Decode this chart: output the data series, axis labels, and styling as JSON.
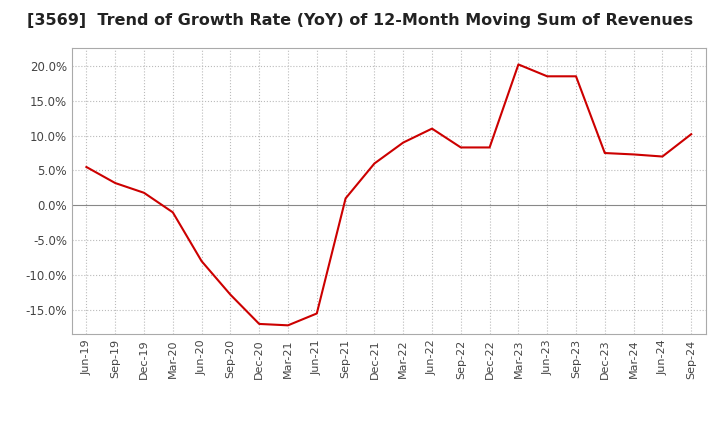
{
  "title": "[3569]  Trend of Growth Rate (YoY) of 12-Month Moving Sum of Revenues",
  "title_fontsize": 11.5,
  "line_color": "#cc0000",
  "background_color": "#ffffff",
  "grid_color": "#bbbbbb",
  "ylim": [
    -0.185,
    0.225
  ],
  "yticks": [
    -0.15,
    -0.1,
    -0.05,
    0.0,
    0.05,
    0.1,
    0.15,
    0.2
  ],
  "x_labels": [
    "Jun-19",
    "Sep-19",
    "Dec-19",
    "Mar-20",
    "Jun-20",
    "Sep-20",
    "Dec-20",
    "Mar-21",
    "Jun-21",
    "Sep-21",
    "Dec-21",
    "Mar-22",
    "Jun-22",
    "Sep-22",
    "Dec-22",
    "Mar-23",
    "Jun-23",
    "Sep-23",
    "Dec-23",
    "Mar-24",
    "Jun-24",
    "Sep-24"
  ],
  "values": [
    0.055,
    0.032,
    0.018,
    -0.01,
    -0.08,
    -0.128,
    -0.17,
    -0.172,
    -0.155,
    0.01,
    0.06,
    0.09,
    0.11,
    0.083,
    0.083,
    0.202,
    0.185,
    0.185,
    0.075,
    0.073,
    0.07,
    0.102
  ]
}
